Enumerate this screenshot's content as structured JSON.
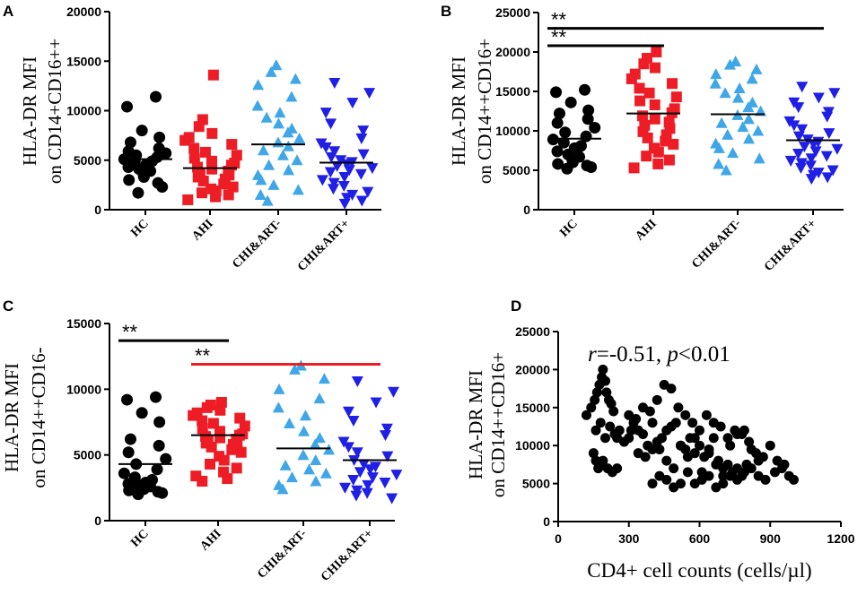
{
  "figure": {
    "panels": [
      {
        "label": "A"
      },
      {
        "label": "B"
      },
      {
        "label": "C"
      },
      {
        "label": "D"
      }
    ]
  },
  "colors": {
    "HC": "#000000",
    "AHI": "#ee1c25",
    "CHI&ART-": "#3fa6e8",
    "CHI&ART+": "#1f1fe6",
    "red_bar": "#ee1c25"
  },
  "chart_data": [
    {
      "panel": "A",
      "type": "scatter",
      "ylabel_lines": [
        "HLA-DR MFI",
        "on CD14+CD16++"
      ],
      "ylim": [
        0,
        20000
      ],
      "yticks": [
        0,
        5000,
        10000,
        15000,
        20000
      ],
      "categories": [
        "HC",
        "AHI",
        "CHI&ART-",
        "CHI&ART+"
      ],
      "markers": [
        "circle",
        "square",
        "triangle-up",
        "triangle-down"
      ],
      "means": [
        5100,
        4200,
        6600,
        4750
      ],
      "groups": [
        [
          11400,
          10400,
          8000,
          7300,
          6800,
          6200,
          5900,
          5700,
          5500,
          5300,
          5100,
          5000,
          4900,
          4500,
          4300,
          4100,
          3900,
          3600,
          3300,
          3000,
          2700,
          2300,
          1700
        ],
        [
          13600,
          9100,
          8400,
          7700,
          7300,
          7000,
          6600,
          6200,
          5800,
          5500,
          5200,
          4900,
          4700,
          4500,
          4300,
          4100,
          3900,
          3700,
          3500,
          3300,
          3100,
          2900,
          2600,
          2300,
          2100,
          1900,
          1700,
          1500,
          1300,
          1000
        ],
        [
          14600,
          13900,
          13200,
          12600,
          11400,
          10500,
          9800,
          9300,
          8700,
          8200,
          7800,
          7200,
          6800,
          6400,
          6000,
          5500,
          5000,
          4500,
          4000,
          3500,
          3000,
          2500,
          2000,
          1500,
          900
        ],
        [
          12800,
          11800,
          10800,
          9800,
          8700,
          8000,
          7200,
          6700,
          6300,
          5900,
          5600,
          5300,
          5000,
          4800,
          4600,
          4400,
          4200,
          4000,
          3800,
          3600,
          3300,
          3000,
          2700,
          2400,
          2100,
          1800,
          1500,
          1200,
          900,
          600
        ]
      ],
      "significance": []
    },
    {
      "panel": "B",
      "type": "scatter",
      "ylabel_lines": [
        "HLA-DR MFI",
        "on CD14++CD16+"
      ],
      "ylim": [
        0,
        25000
      ],
      "yticks": [
        0,
        5000,
        10000,
        15000,
        20000,
        25000
      ],
      "categories": [
        "HC",
        "AHI",
        "CHI&ART-",
        "CHI&ART+"
      ],
      "markers": [
        "circle",
        "square",
        "triangle-up",
        "triangle-down"
      ],
      "means": [
        9000,
        12200,
        12100,
        8800
      ],
      "groups": [
        [
          15200,
          14900,
          13600,
          12600,
          12200,
          11500,
          11000,
          10400,
          9800,
          9300,
          8900,
          8500,
          8100,
          7800,
          7400,
          7000,
          6700,
          6300,
          6000,
          5800,
          5600,
          5400,
          5200
        ],
        [
          20000,
          19200,
          18500,
          18000,
          17200,
          16600,
          16000,
          15400,
          14800,
          14300,
          13800,
          13300,
          12800,
          12300,
          11900,
          11500,
          11100,
          10700,
          10300,
          9900,
          9500,
          9100,
          8700,
          8300,
          7800,
          7300,
          6800,
          6300,
          5800,
          5300
        ],
        [
          18800,
          18400,
          17800,
          17200,
          16600,
          16000,
          15400,
          14800,
          14200,
          13600,
          13000,
          12500,
          12000,
          11500,
          11000,
          10500,
          10000,
          9500,
          9000,
          8400,
          7800,
          7200,
          6500,
          5800,
          5000
        ],
        [
          15600,
          14800,
          14200,
          13600,
          13000,
          12400,
          11800,
          11200,
          10700,
          10200,
          9700,
          9300,
          8900,
          8600,
          8300,
          8000,
          7700,
          7400,
          7100,
          6800,
          6500,
          6200,
          5900,
          5600,
          5300,
          5000,
          4700,
          4400,
          4100,
          3900
        ]
      ],
      "significance": [
        {
          "label": "**",
          "from": 0,
          "to": 3,
          "level": 23000,
          "color": "#000000"
        },
        {
          "label": "**",
          "from": 0,
          "to": 1,
          "level": 20800,
          "color": "#000000"
        }
      ]
    },
    {
      "panel": "C",
      "type": "scatter",
      "ylabel_lines": [
        "HLA-DR MFI",
        "on  CD14++CD16-"
      ],
      "ylim": [
        0,
        15000
      ],
      "yticks": [
        0,
        5000,
        10000,
        15000
      ],
      "categories": [
        "HC",
        "AHI",
        "CHI&ART-",
        "CHI&ART+"
      ],
      "markers": [
        "circle",
        "square",
        "triangle-up",
        "triangle-down"
      ],
      "means": [
        4300,
        6500,
        5500,
        4600
      ],
      "groups": [
        [
          9400,
          9200,
          8200,
          7500,
          6200,
          5700,
          5200,
          4700,
          4300,
          3900,
          3600,
          3300,
          3100,
          2900,
          2800,
          2700,
          2600,
          2500,
          2400,
          2300,
          2200,
          2100,
          2000
        ],
        [
          9000,
          8800,
          8600,
          8400,
          8200,
          8000,
          7800,
          7600,
          7400,
          7200,
          7000,
          6800,
          6600,
          6500,
          6400,
          6300,
          6200,
          6100,
          6000,
          5900,
          5800,
          5600,
          5400,
          5200,
          4900,
          4600,
          4300,
          4000,
          3700,
          3400,
          3200,
          3000
        ],
        [
          11800,
          11500,
          10800,
          10000,
          9300,
          8600,
          8000,
          7400,
          6800,
          6300,
          5800,
          5400,
          5000,
          4600,
          4200,
          3900,
          3600,
          3300,
          3000,
          2700,
          2400
        ],
        [
          10600,
          9800,
          9000,
          8300,
          7600,
          7000,
          6500,
          6000,
          5600,
          5200,
          4900,
          4600,
          4300,
          4100,
          3900,
          3700,
          3500,
          3300,
          3100,
          2900,
          2700,
          2500,
          2300,
          2100,
          1900,
          1700
        ]
      ],
      "significance": [
        {
          "label": "**",
          "from": 0,
          "to": 1,
          "level": 13700,
          "color": "#000000"
        },
        {
          "label": "**",
          "from": 1,
          "to": 3,
          "level": 11900,
          "color": "#ee1c25"
        }
      ]
    },
    {
      "panel": "D",
      "type": "scatter",
      "ylabel_lines": [
        "HLA-DR MFI",
        "on CD14++CD16+"
      ],
      "xlabel": "CD4+ cell  counts (cells/µl)",
      "xlim": [
        0,
        1200
      ],
      "xticks": [
        0,
        300,
        600,
        900,
        1200
      ],
      "ylim": [
        0,
        25000
      ],
      "yticks": [
        0,
        5000,
        10000,
        15000,
        20000,
        25000
      ],
      "annotation": {
        "r_symbol": "r",
        "r_value": "=-0.51, ",
        "p_symbol": "p",
        "p_value": "<0.01"
      },
      "x": [
        120,
        140,
        155,
        165,
        175,
        185,
        190,
        200,
        205,
        215,
        225,
        235,
        150,
        160,
        170,
        180,
        190,
        210,
        230,
        250,
        160,
        180,
        200,
        220,
        240,
        260,
        280,
        300,
        320,
        340,
        360,
        380,
        400,
        420,
        440,
        460,
        480,
        500,
        520,
        540,
        560,
        580,
        600,
        620,
        640,
        660,
        680,
        700,
        720,
        740,
        760,
        780,
        800,
        850,
        880,
        920,
        950,
        980,
        1000,
        300,
        330,
        360,
        390,
        420,
        450,
        480,
        510,
        540,
        570,
        600,
        630,
        660,
        690,
        720,
        750,
        780,
        810,
        840,
        870,
        900,
        930,
        960,
        400,
        430,
        460,
        490,
        520,
        550,
        580,
        610,
        640,
        670,
        700,
        730,
        760,
        790,
        820,
        850,
        250,
        280,
        310,
        340,
        370,
        400,
        430,
        460,
        490,
        520,
        550,
        580,
        610,
        640,
        670,
        700,
        730,
        760,
        790,
        820
      ],
      "y": [
        14000,
        15000,
        16000,
        17000,
        18000,
        19000,
        20000,
        18500,
        17000,
        16000,
        15500,
        14500,
        9000,
        8000,
        7000,
        7500,
        8000,
        7000,
        6500,
        7000,
        12000,
        13000,
        11000,
        12500,
        11500,
        12000,
        10500,
        11000,
        13000,
        12000,
        11500,
        10000,
        9500,
        10500,
        11000,
        12000,
        12500,
        13000,
        10000,
        9500,
        11000,
        9000,
        10000,
        8500,
        9500,
        11000,
        8000,
        7000,
        7500,
        6500,
        7000,
        6000,
        7500,
        6000,
        5500,
        6500,
        7000,
        6000,
        5500,
        14000,
        13500,
        15000,
        14500,
        16000,
        18000,
        17500,
        15000,
        14000,
        13000,
        12000,
        14000,
        13000,
        12500,
        11000,
        12000,
        11500,
        10500,
        9000,
        8500,
        10000,
        8000,
        7500,
        5000,
        6000,
        5500,
        4500,
        5000,
        6500,
        5000,
        5500,
        6000,
        4500,
        5000,
        6000,
        5500,
        6500,
        7000,
        8000,
        11000,
        10500,
        12000,
        9000,
        8500,
        13000,
        9500,
        8000,
        7000,
        10000,
        8500,
        11000,
        6500,
        9000,
        7500,
        6000,
        10000,
        11500,
        12000,
        9500
      ]
    }
  ]
}
